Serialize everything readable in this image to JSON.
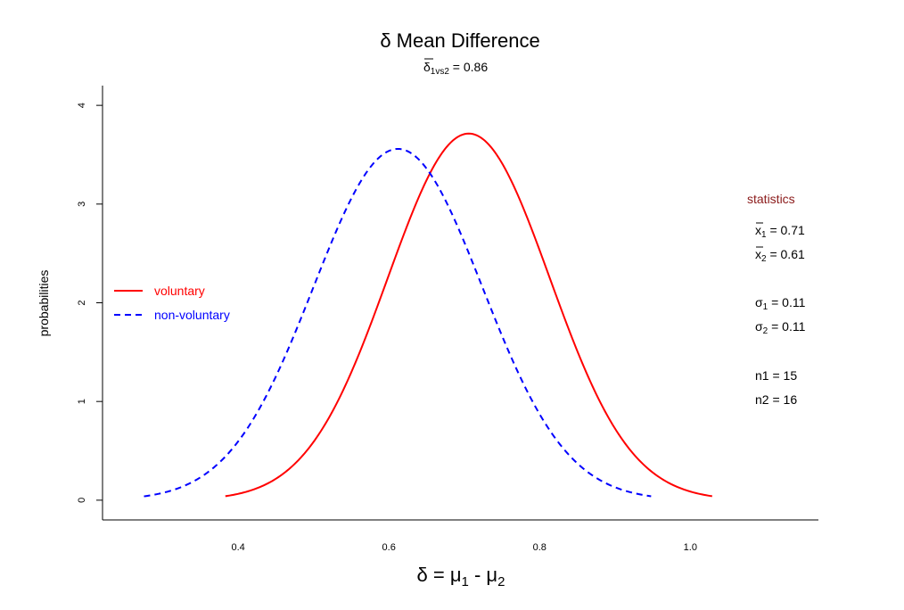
{
  "chart_data": {
    "type": "line",
    "title": "δ Mean Difference",
    "subtitle": {
      "prefix": "δ",
      "subscript": "1vs2",
      "value_text": " = 0.86"
    },
    "xlabel": {
      "base": "δ = μ",
      "sub1": "1",
      "mid": " - μ",
      "sub2": "2"
    },
    "ylabel": "probabilities",
    "xlim": [
      0.22,
      1.17
    ],
    "ylim": [
      -0.2,
      4.2
    ],
    "x_ticks": [
      0.4,
      0.6,
      0.8,
      1.0
    ],
    "x_tick_labels": [
      "0.4",
      "0.6",
      "0.8",
      "1.0"
    ],
    "y_ticks": [
      0,
      1,
      2,
      3,
      4
    ],
    "y_tick_labels": [
      "0",
      "1",
      "2",
      "3",
      "4"
    ],
    "grid": false,
    "legend_position": "left",
    "series": [
      {
        "name": "voluntary",
        "color": "#ff0000",
        "line_style": "solid",
        "mean": 0.706,
        "sd": 0.1074,
        "x_range": [
          0.383,
          1.029
        ]
      },
      {
        "name": "non-voluntary",
        "color": "#0000ff",
        "line_style": "dashed",
        "mean": 0.612,
        "sd": 0.1121,
        "x_range": [
          0.275,
          0.948
        ]
      }
    ],
    "statistics_panel": {
      "title": "statistics",
      "title_color": "#8b1a1a",
      "mean_lines": [
        {
          "sym": "x",
          "sub": "1",
          "val": " = 0.71"
        },
        {
          "sym": "x",
          "sub": "2",
          "val": " = 0.61"
        }
      ],
      "sd_lines": [
        {
          "sym": "σ",
          "sub": "1",
          "val": " = 0.11"
        },
        {
          "sym": "σ",
          "sub": "2",
          "val": " = 0.11"
        }
      ],
      "n_lines": [
        "n1 = 15",
        "n2 = 16"
      ]
    }
  }
}
